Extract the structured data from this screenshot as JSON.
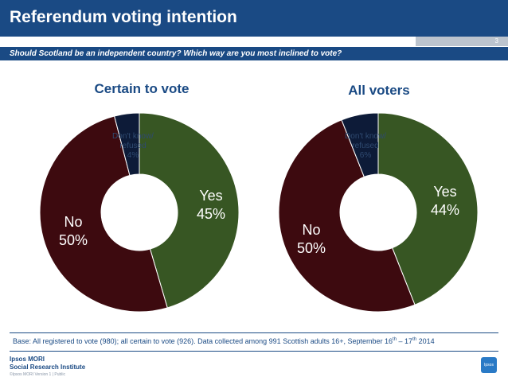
{
  "header": {
    "title": "Referendum voting intention",
    "page_number": "3",
    "question": "Should Scotland be an independent country? Which way are you most inclined to vote?"
  },
  "colors": {
    "header": "#1a4a84",
    "yes": "#375623",
    "no": "#3d0a0f",
    "dont_know": "#0d1b38"
  },
  "chart_data": [
    {
      "type": "pie",
      "title": "Certain to vote",
      "categories": [
        "Yes",
        "No",
        "Don't know/ refused"
      ],
      "values": [
        45,
        50,
        4
      ],
      "labels": {
        "yes": "Yes",
        "yes_pct": "45%",
        "no": "No",
        "no_pct": "50%",
        "dk_line1": "Don't know/",
        "dk_line2": "refused",
        "dk_pct": "4%"
      }
    },
    {
      "type": "pie",
      "title": "All voters",
      "categories": [
        "Yes",
        "No",
        "Don't know/ refused"
      ],
      "values": [
        44,
        50,
        6
      ],
      "labels": {
        "yes": "Yes",
        "yes_pct": "44%",
        "no": "No",
        "no_pct": "50%",
        "dk_line1": "Don't know/",
        "dk_line2": "refused",
        "dk_pct": "6%"
      }
    }
  ],
  "footer": {
    "base_prefix": "Base: All registered to vote (980); all certain to vote (926). Data collected among 991 Scottish adults 16+, September 16",
    "sup1": "th",
    "mid": " – 17",
    "sup2": "th",
    "suffix": " 2014",
    "logo_line1": "Ipsos MORI",
    "logo_line2": "Social Research Institute",
    "confidentiality": "©Ipsos MORI   Version 1 | Public",
    "badge": "Ipsos"
  }
}
